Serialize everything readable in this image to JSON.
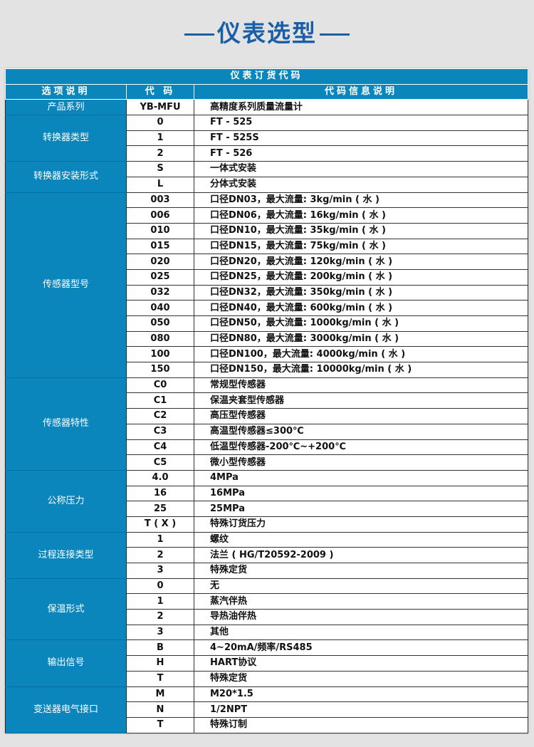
{
  "title": "仪表选型",
  "table": {
    "caption": "仪表订货代码",
    "headers": [
      "选项说明",
      "代 码",
      "代码信息说明"
    ],
    "groups": [
      {
        "label": "产品系列",
        "rows": [
          [
            "YB-MFU",
            "高精度系列质量流量计"
          ]
        ]
      },
      {
        "label": "转换器类型",
        "rows": [
          [
            "0",
            "FT - 525"
          ],
          [
            "1",
            "FT - 525S"
          ],
          [
            "2",
            "FT - 526"
          ]
        ]
      },
      {
        "label": "转换器安装形式",
        "rows": [
          [
            "S",
            "一体式安装"
          ],
          [
            "L",
            "分体式安装"
          ]
        ]
      },
      {
        "label": "传感器型号",
        "rows": [
          [
            "003",
            "口径DN03，最大流量: 3kg/min ( 水 )"
          ],
          [
            "006",
            "口径DN06，最大流量: 16kg/min ( 水 )"
          ],
          [
            "010",
            "口径DN10，最大流量: 35kg/min ( 水 )"
          ],
          [
            "015",
            "口径DN15，最大流量: 75kg/min ( 水 )"
          ],
          [
            "020",
            "口径DN20，最大流量: 120kg/min ( 水 )"
          ],
          [
            "025",
            "口径DN25，最大流量: 200kg/min ( 水 )"
          ],
          [
            "032",
            "口径DN32，最大流量: 350kg/min ( 水 )"
          ],
          [
            "040",
            "口径DN40，最大流量: 600kg/min ( 水 )"
          ],
          [
            "050",
            "口径DN50，最大流量: 1000kg/min ( 水 )"
          ],
          [
            "080",
            "口径DN80，最大流量: 3000kg/min ( 水 )"
          ],
          [
            "100",
            "口径DN100，最大流量: 4000kg/min ( 水 )"
          ],
          [
            "150",
            "口径DN150，最大流量: 10000kg/min ( 水 )"
          ]
        ]
      },
      {
        "label": "传感器特性",
        "rows": [
          [
            "C0",
            "常规型传感器"
          ],
          [
            "C1",
            "保温夹套型传感器"
          ],
          [
            "C2",
            "高压型传感器"
          ],
          [
            "C3",
            "高温型传感器≤300℃"
          ],
          [
            "C4",
            "低温型传感器-200℃~+200℃"
          ],
          [
            "C5",
            "微小型传感器"
          ]
        ]
      },
      {
        "label": "公称压力",
        "rows": [
          [
            "4.0",
            "4MPa"
          ],
          [
            "16",
            "16MPa"
          ],
          [
            "25",
            "25MPa"
          ],
          [
            "T ( X )",
            "特殊订货压力"
          ]
        ]
      },
      {
        "label": "过程连接类型",
        "rows": [
          [
            "1",
            "螺纹"
          ],
          [
            "2",
            "法兰 ( HG/T20592-2009 )"
          ],
          [
            "3",
            "特殊定货"
          ]
        ]
      },
      {
        "label": "保温形式",
        "rows": [
          [
            "0",
            "无"
          ],
          [
            "1",
            "蒸汽伴热"
          ],
          [
            "2",
            "导热油伴热"
          ],
          [
            "3",
            "其他"
          ]
        ]
      },
      {
        "label": "输出信号",
        "rows": [
          [
            "B",
            "4~20mA/频率/RS485"
          ],
          [
            "H",
            "HART协议"
          ],
          [
            "T",
            "特殊定货"
          ]
        ]
      },
      {
        "label": "变送器电气接口",
        "rows": [
          [
            "M",
            "M20*1.5"
          ],
          [
            "N",
            "1/2NPT"
          ],
          [
            "T",
            "特殊订制"
          ]
        ]
      }
    ]
  },
  "colors": {
    "accent": "#0a86bd",
    "title": "#1a5fa6"
  }
}
